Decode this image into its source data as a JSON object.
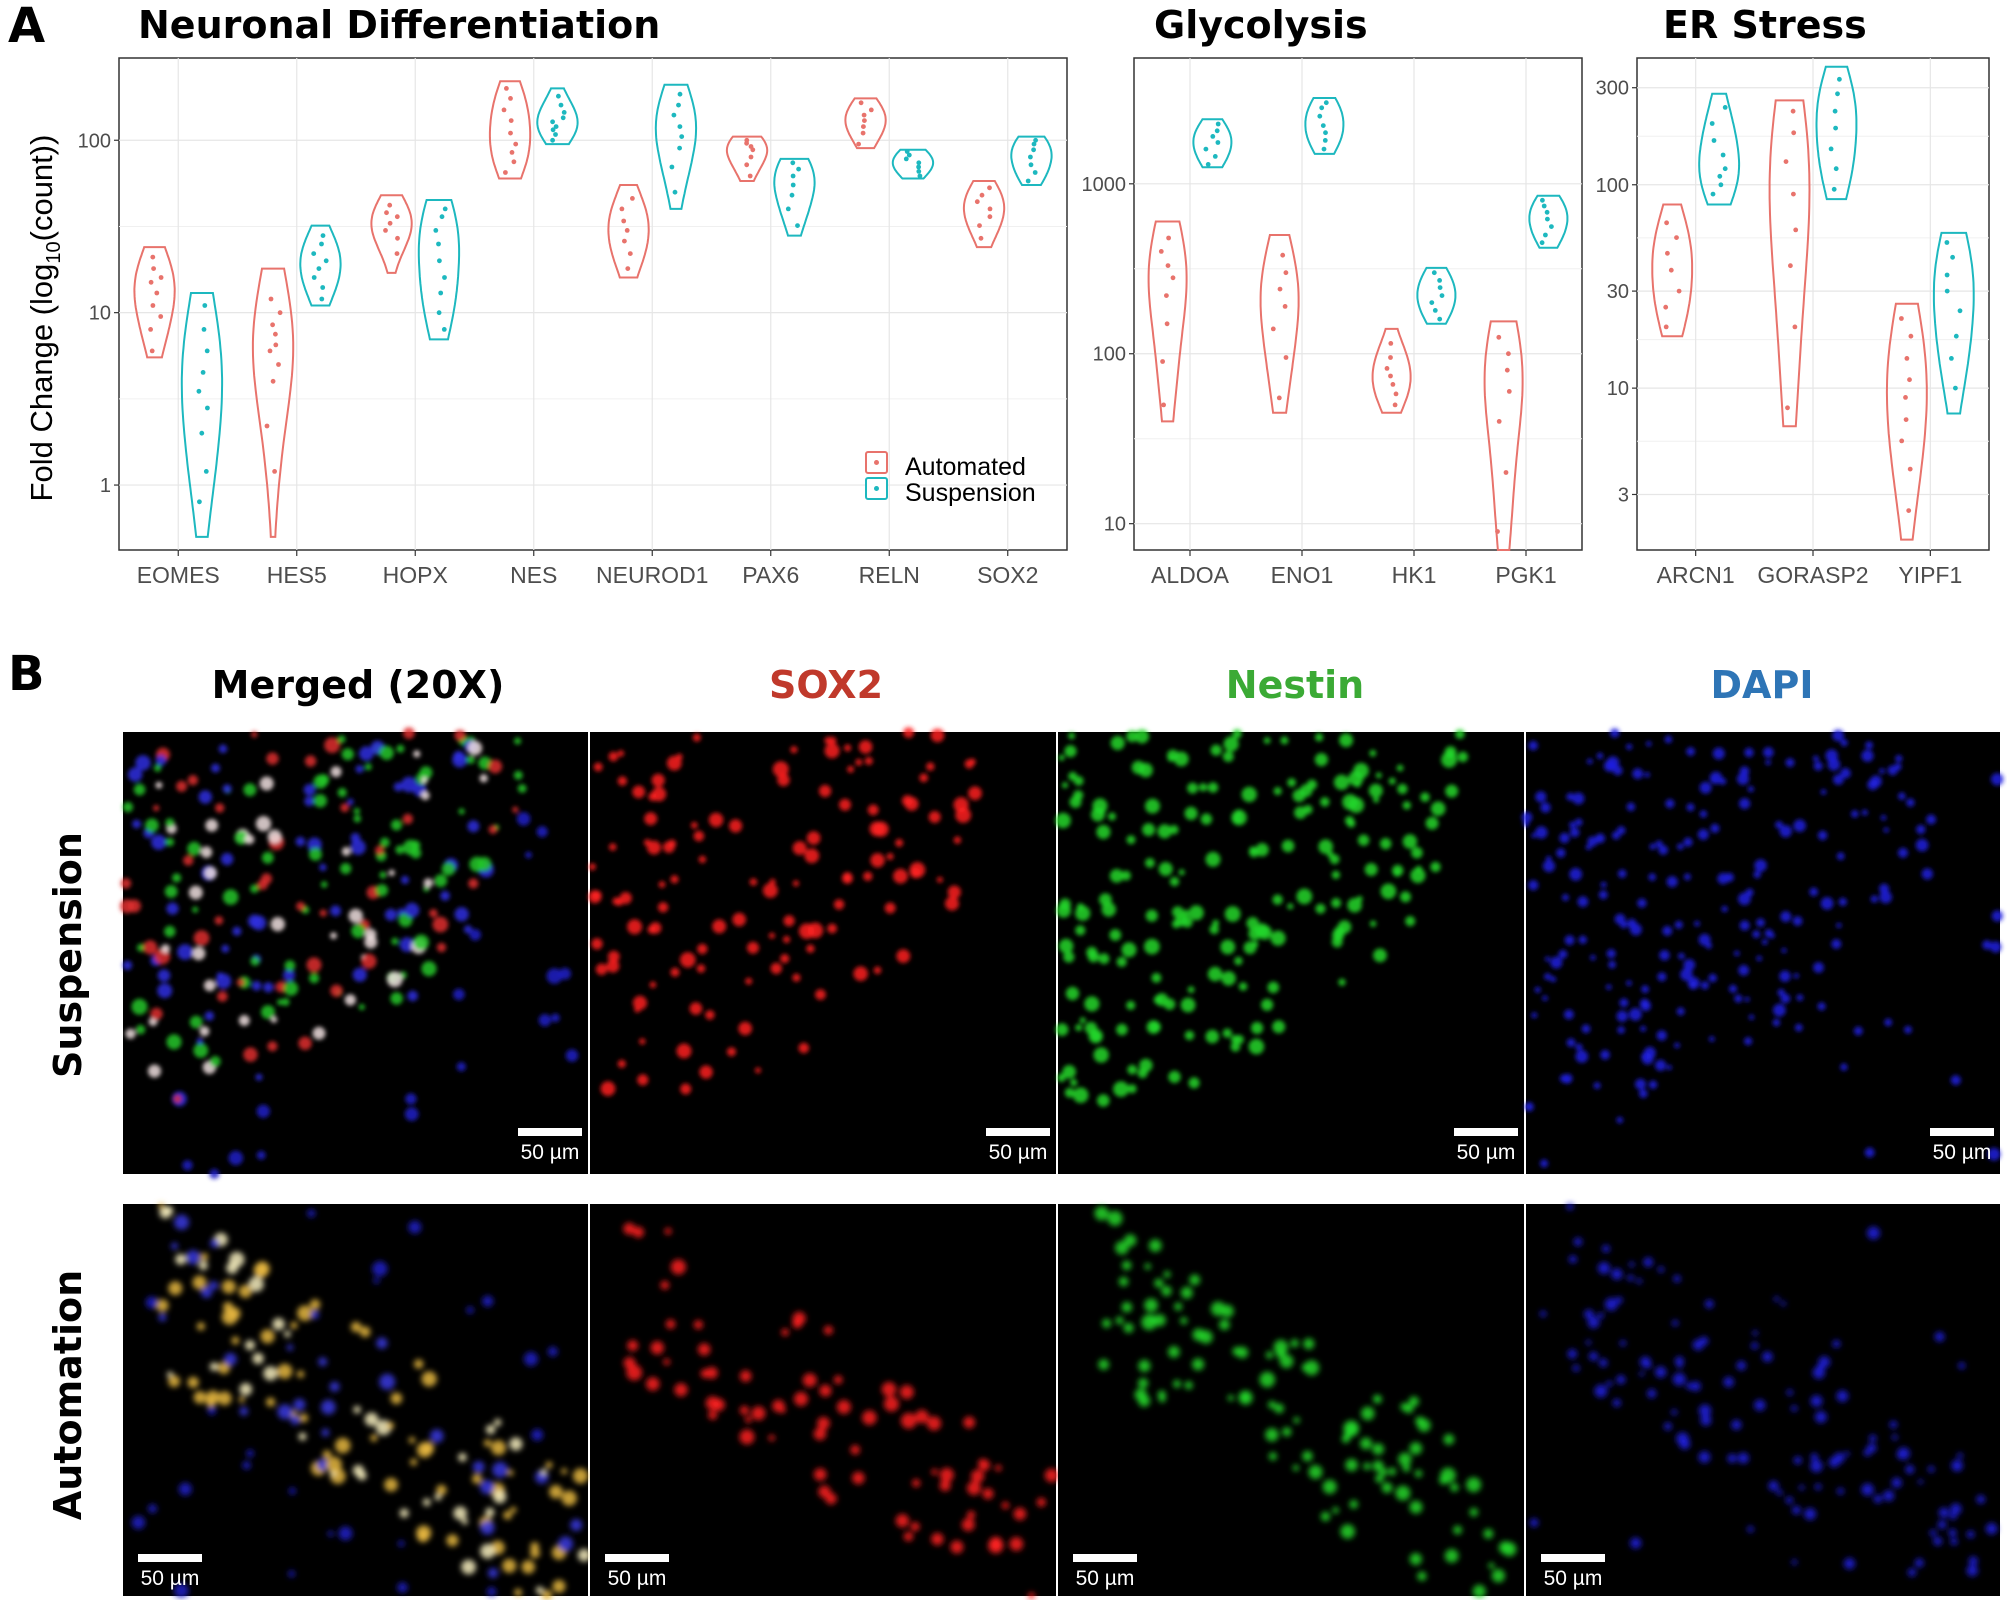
{
  "panel_a_label": "A",
  "panel_b_label": "B",
  "ylabel": "Fold Change (log10(count))",
  "legend": [
    {
      "label": "Automated",
      "color": "#E8736C"
    },
    {
      "label": "Suspension",
      "color": "#1DB8BF"
    }
  ],
  "chart_data": [
    {
      "type": "violin",
      "title": "Neuronal Differentiation",
      "ylabel": "Fold Change (log10(count))",
      "yscale": "log",
      "ylim": [
        0.42,
        300
      ],
      "yticks": [
        1,
        10,
        100
      ],
      "ytick_labels": [
        "1",
        "10",
        "100"
      ],
      "grid": true,
      "legend_position": "bottom-right",
      "categories": [
        "EOMES",
        "HES5",
        "HOPX",
        "NES",
        "NEUROD1",
        "PAX6",
        "RELN",
        "SOX2"
      ],
      "series": [
        {
          "name": "Automated",
          "color": "#E8736C",
          "groups": [
            {
              "min": 5.5,
              "max": 24,
              "points": [
                6,
                8,
                9.5,
                11,
                13,
                15,
                16,
                18,
                21
              ]
            },
            {
              "min": 0.5,
              "max": 18,
              "points": [
                1.2,
                2.2,
                4,
                5,
                6,
                6.5,
                7.5,
                8.5,
                10,
                12
              ]
            },
            {
              "min": 17,
              "max": 48,
              "points": [
                22,
                27,
                30,
                33,
                36,
                38,
                42
              ]
            },
            {
              "min": 60,
              "max": 220,
              "points": [
                65,
                75,
                85,
                95,
                110,
                130,
                150,
                175,
                200
              ]
            },
            {
              "min": 16,
              "max": 55,
              "points": [
                18,
                22,
                26,
                30,
                34,
                40,
                46
              ]
            },
            {
              "min": 58,
              "max": 105,
              "points": [
                62,
                72,
                80,
                88,
                92,
                96,
                100
              ]
            },
            {
              "min": 90,
              "max": 175,
              "points": [
                95,
                110,
                120,
                130,
                140,
                150,
                165
              ]
            },
            {
              "min": 24,
              "max": 58,
              "points": [
                27,
                32,
                36,
                40,
                44,
                48,
                53
              ]
            }
          ]
        },
        {
          "name": "Suspension",
          "color": "#1DB8BF",
          "groups": [
            {
              "min": 0.5,
              "max": 13,
              "points": [
                0.8,
                1.2,
                2,
                2.8,
                3.5,
                4.5,
                6,
                8,
                11
              ]
            },
            {
              "min": 11,
              "max": 32,
              "points": [
                12,
                14,
                16,
                18,
                20,
                22,
                25,
                28
              ]
            },
            {
              "min": 7,
              "max": 45,
              "points": [
                8,
                10,
                13,
                16,
                20,
                25,
                30,
                36,
                40
              ]
            },
            {
              "min": 95,
              "max": 200,
              "points": [
                100,
                108,
                115,
                120,
                128,
                135,
                145,
                160,
                180
              ]
            },
            {
              "min": 40,
              "max": 210,
              "points": [
                50,
                70,
                90,
                105,
                120,
                140,
                160,
                185
              ]
            },
            {
              "min": 28,
              "max": 78,
              "points": [
                32,
                40,
                48,
                55,
                62,
                68,
                74
              ]
            },
            {
              "min": 60,
              "max": 88,
              "points": [
                62,
                66,
                70,
                74,
                78,
                82,
                86
              ]
            },
            {
              "min": 55,
              "max": 105,
              "points": [
                58,
                65,
                72,
                80,
                88,
                95,
                100
              ]
            }
          ]
        }
      ]
    },
    {
      "type": "violin",
      "title": "Glycolysis",
      "yscale": "log",
      "ylim": [
        7,
        5500
      ],
      "yticks": [
        10,
        100,
        1000
      ],
      "ytick_labels": [
        "10",
        "100",
        "1000"
      ],
      "grid": true,
      "categories": [
        "ALDOA",
        "ENO1",
        "HK1",
        "PGK1"
      ],
      "series": [
        {
          "name": "Automated",
          "color": "#E8736C",
          "groups": [
            {
              "min": 40,
              "max": 600,
              "points": [
                50,
                90,
                150,
                220,
                280,
                330,
                400,
                480
              ]
            },
            {
              "min": 45,
              "max": 500,
              "points": [
                55,
                95,
                140,
                190,
                240,
                300,
                380
              ]
            },
            {
              "min": 45,
              "max": 140,
              "points": [
                50,
                58,
                66,
                74,
                82,
                95,
                115
              ]
            },
            {
              "min": 7,
              "max": 155,
              "points": [
                9,
                20,
                40,
                60,
                80,
                100,
                125
              ]
            }
          ]
        },
        {
          "name": "Suspension",
          "color": "#1DB8BF",
          "groups": [
            {
              "min": 1250,
              "max": 2400,
              "points": [
                1300,
                1450,
                1600,
                1750,
                1900,
                2050,
                2250
              ]
            },
            {
              "min": 1500,
              "max": 3200,
              "points": [
                1600,
                1800,
                2000,
                2200,
                2500,
                2800,
                3000
              ]
            },
            {
              "min": 150,
              "max": 320,
              "points": [
                160,
                180,
                200,
                220,
                245,
                270,
                300
              ]
            },
            {
              "min": 420,
              "max": 850,
              "points": [
                450,
                500,
                560,
                620,
                680,
                740,
                800
              ]
            }
          ]
        }
      ]
    },
    {
      "type": "violin",
      "title": "ER Stress",
      "yscale": "log",
      "ylim": [
        1.6,
        420
      ],
      "yticks": [
        3,
        10,
        30,
        100,
        300
      ],
      "ytick_labels": [
        "3",
        "10",
        "30",
        "100",
        "300"
      ],
      "grid": true,
      "categories": [
        "ARCN1",
        "GORASP2",
        "YIPF1"
      ],
      "series": [
        {
          "name": "Automated",
          "color": "#E8736C",
          "groups": [
            {
              "min": 18,
              "max": 80,
              "points": [
                20,
                25,
                30,
                38,
                46,
                55,
                65
              ]
            },
            {
              "min": 6.5,
              "max": 260,
              "points": [
                8,
                20,
                40,
                60,
                90,
                130,
                180,
                230
              ]
            },
            {
              "min": 1.8,
              "max": 26,
              "points": [
                2.5,
                4,
                5.5,
                7,
                9,
                11,
                14,
                18,
                22
              ]
            }
          ]
        },
        {
          "name": "Suspension",
          "color": "#1DB8BF",
          "groups": [
            {
              "min": 80,
              "max": 280,
              "points": [
                90,
                100,
                110,
                120,
                140,
                165,
                200,
                240
              ]
            },
            {
              "min": 85,
              "max": 380,
              "points": [
                95,
                120,
                150,
                190,
                230,
                280,
                330
              ]
            },
            {
              "min": 7.5,
              "max": 58,
              "points": [
                10,
                14,
                18,
                24,
                30,
                36,
                44,
                52
              ]
            }
          ]
        }
      ]
    }
  ],
  "panel_b": {
    "columns": [
      {
        "label": "Merged (20X)",
        "color": "#000000"
      },
      {
        "label": "SOX2",
        "color": "#C0392B"
      },
      {
        "label": "Nestin",
        "color": "#3BAA35"
      },
      {
        "label": "DAPI",
        "color": "#2E75B6"
      }
    ],
    "rows": [
      {
        "label": "Suspension"
      },
      {
        "label": "Automation"
      }
    ],
    "scale_bar_label": "50 µm"
  }
}
